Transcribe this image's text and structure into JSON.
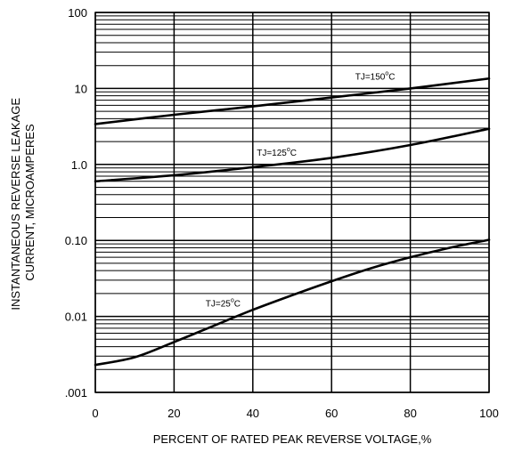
{
  "chart_data": {
    "type": "line",
    "title": "",
    "xlabel": "PERCENT OF RATED PEAK REVERSE VOLTAGE,%",
    "ylabel_lines": [
      "INSTANTANEOUS REVERSE LEAKAGE",
      "CURRENT, MICROAMPERES"
    ],
    "x_scale": "linear",
    "y_scale": "log",
    "xlim": [
      0,
      100
    ],
    "ylim": [
      0.001,
      100
    ],
    "x_ticks": [
      0,
      20,
      40,
      60,
      80,
      100
    ],
    "x_tick_labels": [
      "0",
      "20",
      "40",
      "60",
      "80",
      "100"
    ],
    "y_ticks": [
      0.001,
      0.01,
      0.1,
      1,
      10,
      100
    ],
    "y_tick_labels": [
      ".001",
      "0.01",
      "0.10",
      "1.0",
      "10",
      "100"
    ],
    "grid": true,
    "legend": "none",
    "series": [
      {
        "label_prefix": "TJ=150",
        "label_sup": "o",
        "label_suffix": "C",
        "label_at": [
          66,
          13
        ],
        "x": [
          0,
          20,
          40,
          60,
          80,
          100
        ],
        "y": [
          3.4,
          4.5,
          5.8,
          7.6,
          10,
          13.5
        ]
      },
      {
        "label_prefix": "TJ=125",
        "label_sup": "o",
        "label_suffix": "C",
        "label_at": [
          41,
          1.3
        ],
        "x": [
          0,
          20,
          40,
          60,
          80,
          100
        ],
        "y": [
          0.6,
          0.72,
          0.92,
          1.22,
          1.8,
          2.95
        ]
      },
      {
        "label_prefix": "TJ=25",
        "label_sup": "o",
        "label_suffix": "C",
        "label_at": [
          28,
          0.0135
        ],
        "x": [
          0,
          10,
          20,
          30,
          40,
          50,
          60,
          70,
          80,
          90,
          100
        ],
        "y": [
          0.0023,
          0.0029,
          0.0046,
          0.0075,
          0.0122,
          0.019,
          0.029,
          0.043,
          0.06,
          0.08,
          0.102
        ]
      }
    ]
  }
}
